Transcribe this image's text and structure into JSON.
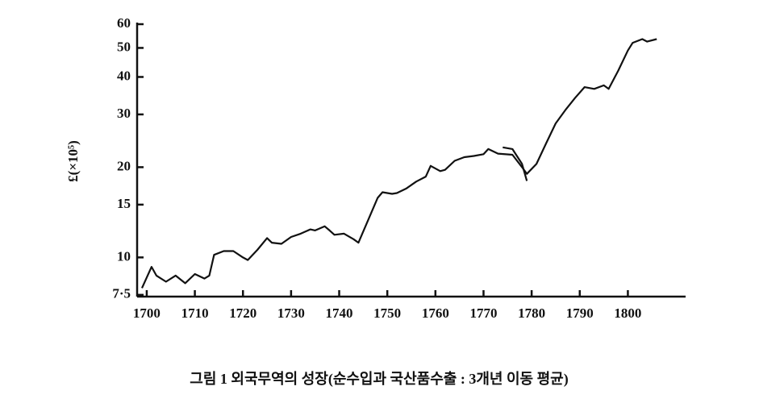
{
  "chart_data": {
    "type": "line",
    "ylabel": "£(×10⁵)",
    "caption": "그림 1  외국무역의 성장(순수입과 국산품수출 : 3개년 이동 평균)",
    "log_y": true,
    "xlim": [
      1698,
      1812
    ],
    "xticks": [
      1700,
      1710,
      1720,
      1730,
      1740,
      1750,
      1760,
      1770,
      1780,
      1790,
      1800
    ],
    "ylim": [
      7.4,
      60
    ],
    "yticks": [
      {
        "value": 7.5,
        "label": "7·5"
      },
      10,
      15,
      20,
      30,
      40,
      50,
      60
    ],
    "series": [
      {
        "color": "#111111",
        "x": [
          1699,
          1701,
          1702,
          1704,
          1706,
          1708,
          1710,
          1712,
          1713,
          1714,
          1716,
          1718,
          1720,
          1721,
          1723,
          1725,
          1726,
          1728,
          1730,
          1732,
          1734,
          1735,
          1737,
          1738,
          1739,
          1741,
          1743,
          1744,
          1746,
          1748,
          1749,
          1751,
          1752,
          1754,
          1756,
          1758,
          1759,
          1761,
          1762,
          1764,
          1766,
          1768,
          1770,
          1771,
          1773,
          1776,
          1778,
          1779,
          1781,
          1783,
          1785,
          1787,
          1789,
          1791,
          1793,
          1795,
          1796,
          1798,
          1800,
          1801,
          1803,
          1804,
          1806
        ],
        "values": [
          7.9,
          9.3,
          8.7,
          8.3,
          8.7,
          8.2,
          8.8,
          8.5,
          8.7,
          10.2,
          10.5,
          10.5,
          10.0,
          9.8,
          10.6,
          11.6,
          11.2,
          11.1,
          11.7,
          12.0,
          12.4,
          12.3,
          12.7,
          12.3,
          11.9,
          12.0,
          11.5,
          11.2,
          13.3,
          15.8,
          16.5,
          16.3,
          16.4,
          17.0,
          17.9,
          18.6,
          20.2,
          19.4,
          19.6,
          21.0,
          21.6,
          21.8,
          22.1,
          23.0,
          22.2,
          22.0,
          20.0,
          19.0,
          20.5,
          24.0,
          28.0,
          31.0,
          34.0,
          37.0,
          36.5,
          37.5,
          36.5,
          42.0,
          49.0,
          52.0,
          53.5,
          52.5,
          53.5
        ]
      },
      {
        "color": "#111111",
        "x": [
          1774,
          1776,
          1778,
          1779
        ],
        "values": [
          23.3,
          23.0,
          20.5,
          18.0
        ]
      }
    ]
  }
}
